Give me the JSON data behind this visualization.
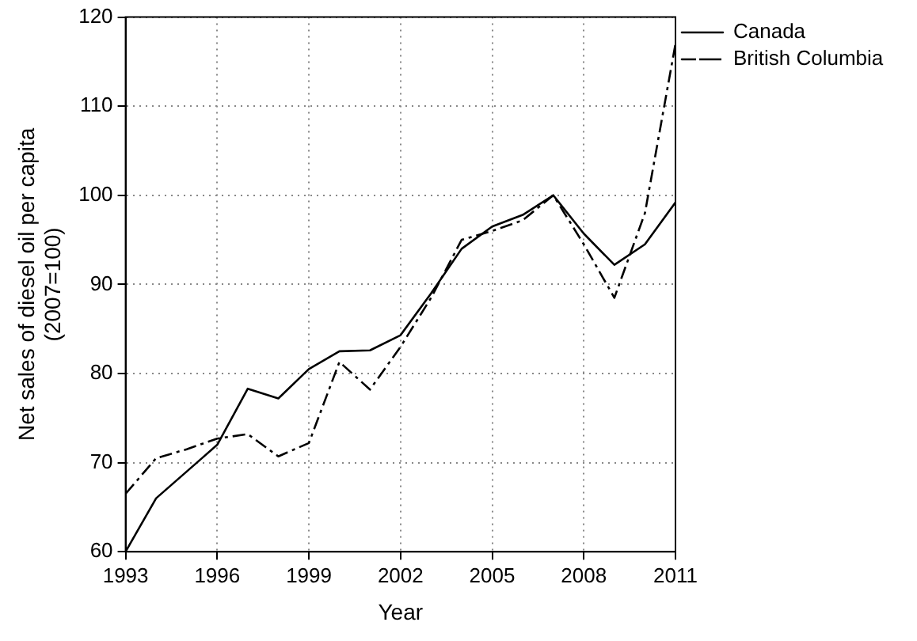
{
  "chart_data": {
    "type": "line",
    "xlabel": "Year",
    "ylabel": "Net sales of diesel oil per capita\n(2007=100)",
    "x": [
      1993,
      1994,
      1995,
      1996,
      1997,
      1998,
      1999,
      2000,
      2001,
      2002,
      2003,
      2004,
      2005,
      2006,
      2007,
      2008,
      2009,
      2010,
      2011
    ],
    "series": [
      {
        "name": "Canada",
        "color": "#000000",
        "line_style": "solid",
        "values": [
          60,
          66,
          69,
          72,
          78.3,
          77.2,
          80.5,
          82.5,
          82.6,
          84.3,
          89,
          94,
          96.5,
          97.8,
          100,
          95.7,
          92.2,
          94.5,
          99.2
        ]
      },
      {
        "name": "British Columbia",
        "color": "#000000",
        "line_style": "dashed",
        "values": [
          66.5,
          70.5,
          71.5,
          72.7,
          73.2,
          70.7,
          72.2,
          81.3,
          78.2,
          83,
          88.5,
          95,
          96,
          97.2,
          100,
          94.5,
          88.5,
          98,
          117
        ]
      }
    ],
    "xlim": [
      1993,
      2011
    ],
    "xticks": [
      1993,
      1996,
      1999,
      2002,
      2005,
      2008,
      2011
    ],
    "ylim": [
      60,
      120
    ],
    "yticks": [
      60,
      70,
      80,
      90,
      100,
      110,
      120
    ],
    "grid": true,
    "legend": "top right",
    "marker": "none"
  }
}
